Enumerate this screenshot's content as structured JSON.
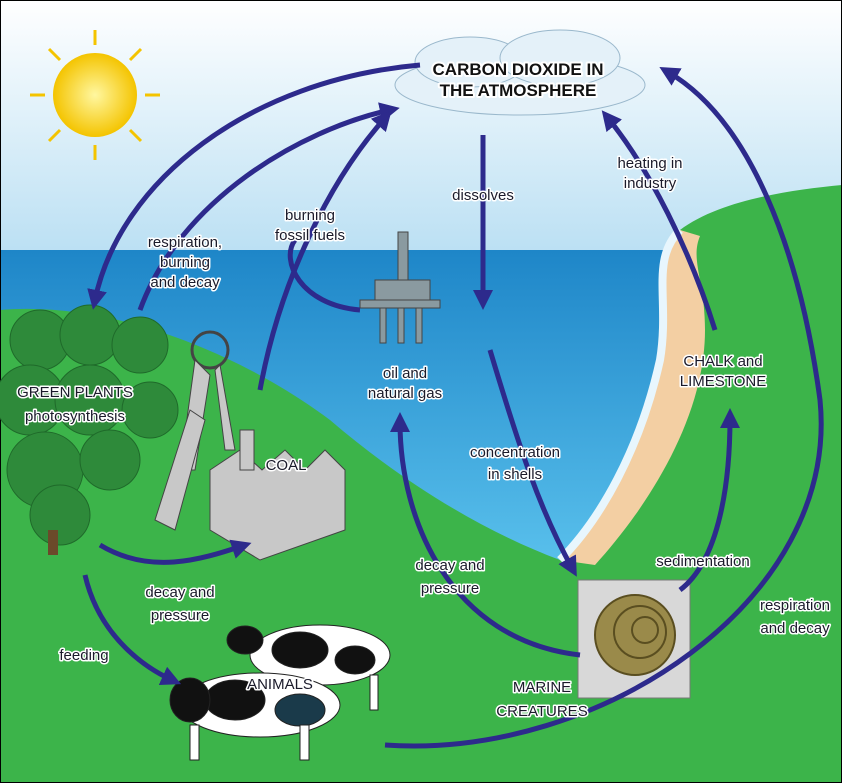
{
  "title": {
    "lines": [
      "CARBON DIOXIDE IN",
      "THE ATMOSPHERE"
    ]
  },
  "labels": [
    {
      "lines": [
        "heating in",
        "industry"
      ]
    },
    {
      "lines": [
        "dissolves"
      ]
    },
    {
      "lines": [
        "burning",
        "fossil fuels"
      ]
    },
    {
      "lines": [
        "respiration,",
        "burning",
        "and decay"
      ]
    },
    {
      "lines": [
        "GREEN PLANTS",
        "photosynthesis"
      ]
    },
    {
      "lines": [
        "oil and",
        "natural gas"
      ]
    },
    {
      "lines": [
        "CHALK and",
        "LIMESTONE"
      ]
    },
    {
      "lines": [
        "COAL"
      ]
    },
    {
      "lines": [
        "concentration",
        "in shells"
      ]
    },
    {
      "lines": [
        "decay and",
        "pressure"
      ]
    },
    {
      "lines": [
        "decay and",
        "pressure"
      ]
    },
    {
      "lines": [
        "sedimentation"
      ]
    },
    {
      "lines": [
        "respiration",
        "and decay"
      ]
    },
    {
      "lines": [
        "feeding"
      ]
    },
    {
      "lines": [
        "ANIMALS"
      ]
    },
    {
      "lines": [
        "MARINE",
        "CREATURES"
      ]
    }
  ]
}
